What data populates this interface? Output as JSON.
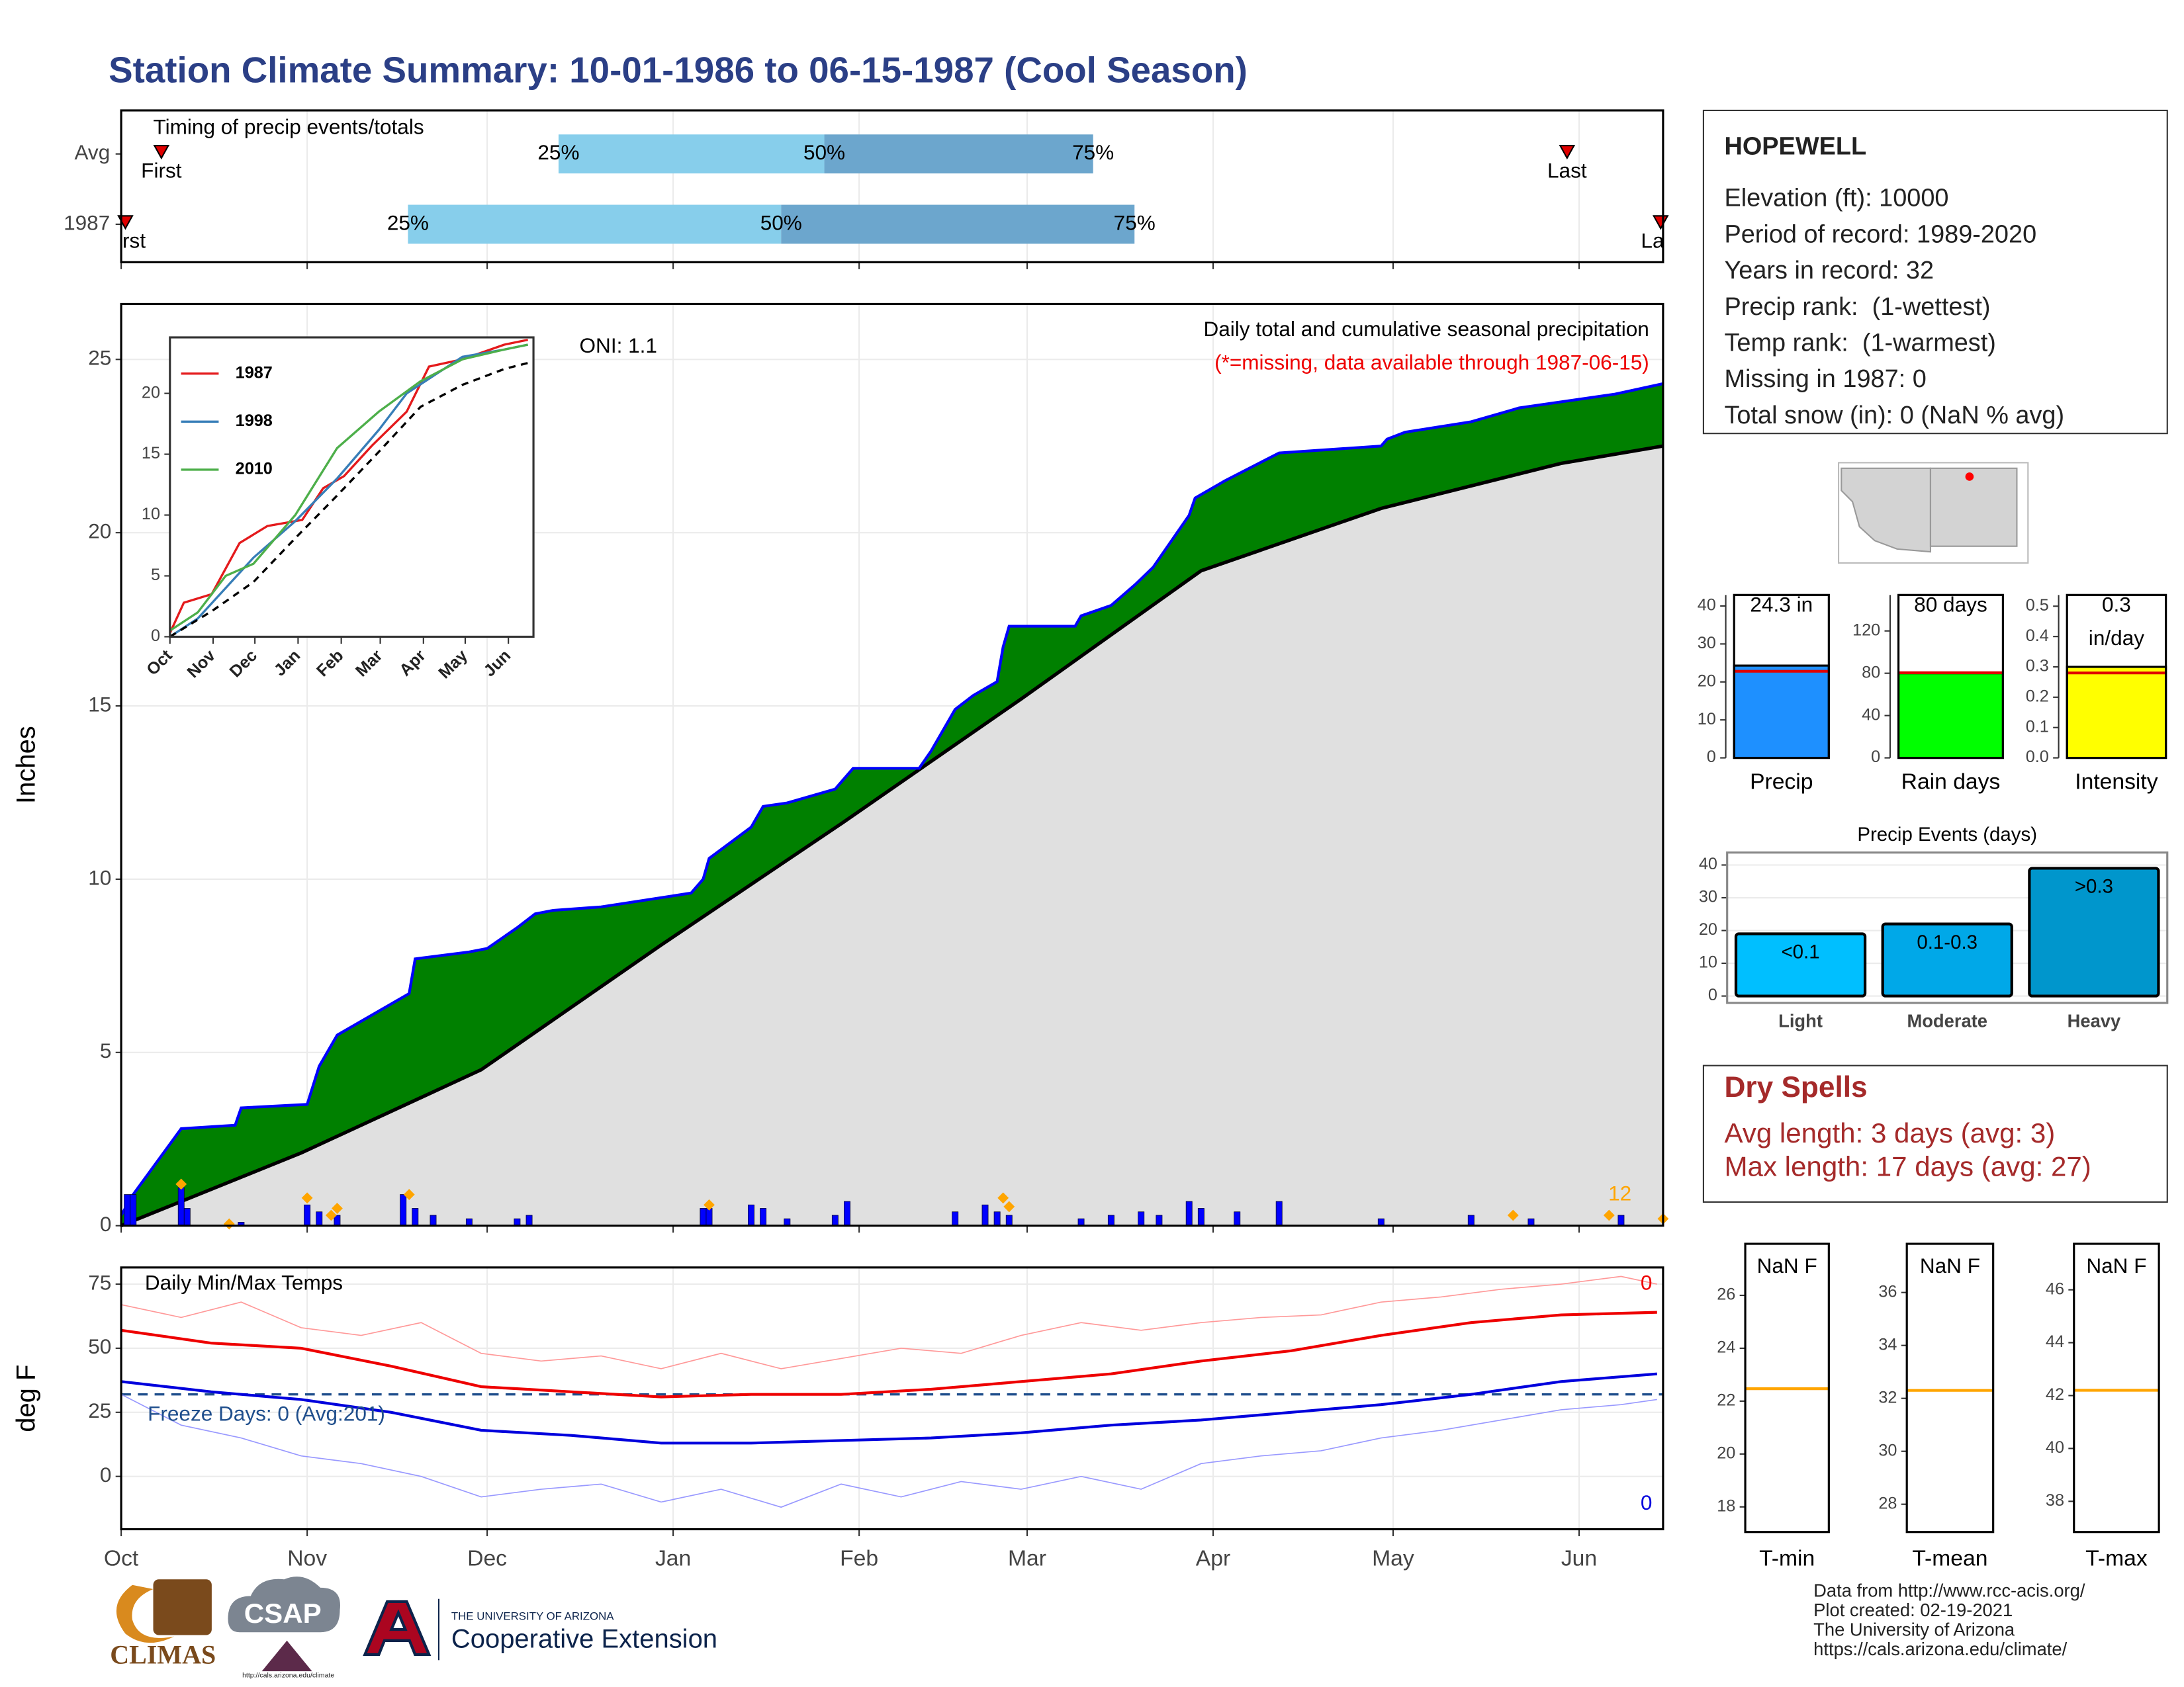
{
  "title": "Station Climate Summary: 10-01-1986 to 06-15-1987 (Cool Season)",
  "station": {
    "name": "HOPEWELL",
    "lines": [
      "Elevation (ft): 10000",
      "Period of record: 1989-2020",
      "Years in record: 32",
      "Precip rank:  (1-wettest)",
      "Temp rank:  (1-warmest)",
      "Missing in 1987: 0",
      "Total snow (in): 0 (NaN % avg)"
    ]
  },
  "dry_spells": {
    "title": "Dry Spells",
    "lines": [
      "Avg length: 3 days (avg: 3)",
      "Max length: 17 days (avg: 27)"
    ]
  },
  "credits": [
    "Data from http://www.rcc-acis.org/",
    "Plot created: 02-19-2021",
    "The University of Arizona",
    "https://cals.arizona.edu/climate/"
  ],
  "logos": [
    "CLIMAS",
    "CSAP",
    "http://cals.arizona.edu/climate",
    "THE UNIVERSITY OF ARIZONA",
    "Cooperative Extension"
  ],
  "chart_data": [
    {
      "type": "timeline",
      "title": "Timing of precip events/totals",
      "xlim": [
        0,
        257
      ],
      "xticks": [
        0,
        31,
        61,
        92,
        123,
        151,
        182,
        212,
        243
      ],
      "grid": true,
      "colors": [
        "#87CEEB",
        "#6CA6CD"
      ],
      "marker_color": "#e00000",
      "rows": [
        {
          "name": "Avg",
          "first": 6.7,
          "last": 241,
          "first_label": "First",
          "last_label": "Last",
          "quartiles": [
            72.9,
            117.2,
            162
          ],
          "quartile_names": [
            "25%",
            "50%",
            "75%"
          ]
        },
        {
          "name": "1987",
          "first": 0.7,
          "last": 256.6,
          "first_label": "First",
          "last_label": "Last",
          "quartiles": [
            47.8,
            110,
            168.9
          ],
          "quartile_names": [
            "25%",
            "50%",
            "75%"
          ]
        }
      ]
    },
    {
      "type": "area",
      "title": "Daily total and cumulative seasonal precipitation",
      "subtitle": "(*=missing, data available through 1987-06-15)",
      "oni": "ONI: 1.1",
      "ylabel": "Inches",
      "xlim": [
        0,
        257
      ],
      "xticks": [
        0,
        31,
        61,
        92,
        123,
        151,
        182,
        212,
        243
      ],
      "ylim": [
        0,
        26.6
      ],
      "yticks": [
        0,
        5,
        10,
        15,
        20,
        25
      ],
      "grid": true,
      "cumulative": {
        "color": "#0000ff",
        "fill": "#008000",
        "x": [
          0,
          2,
          10,
          19,
          20,
          31,
          33,
          36,
          48,
          49,
          58,
          61,
          66,
          69,
          72,
          80,
          95,
          97,
          98,
          105,
          107,
          111,
          119,
          122,
          133,
          135,
          139,
          142,
          146,
          147,
          148,
          159,
          160,
          165,
          169,
          172,
          178,
          179,
          184,
          193,
          210,
          211,
          214,
          225,
          233,
          249,
          257
        ],
        "values": [
          0.3,
          0.9,
          2.8,
          2.9,
          3.4,
          3.5,
          4.6,
          5.5,
          6.7,
          7.7,
          7.9,
          8.0,
          8.6,
          9.0,
          9.1,
          9.2,
          9.6,
          10.0,
          10.6,
          11.5,
          12.1,
          12.2,
          12.6,
          13.2,
          13.2,
          13.7,
          14.9,
          15.3,
          15.7,
          16.7,
          17.3,
          17.3,
          17.6,
          17.9,
          18.5,
          19.0,
          20.5,
          21.0,
          21.5,
          22.3,
          22.5,
          22.7,
          22.9,
          23.2,
          23.6,
          24.0,
          24.3
        ]
      },
      "average": {
        "color": "#000000",
        "fill": "#e0e0e0",
        "x": [
          0,
          30,
          60,
          90,
          120,
          150,
          180,
          210,
          240,
          257
        ],
        "values": [
          0,
          2.1,
          4.5,
          8.1,
          11.6,
          15.2,
          18.9,
          20.7,
          22.0,
          22.5
        ]
      },
      "daily": {
        "color": "#0000ff",
        "x": [
          1,
          2,
          10,
          11,
          20,
          31,
          33,
          36,
          47,
          49,
          52,
          58,
          66,
          68,
          97,
          98,
          105,
          107,
          111,
          119,
          121,
          139,
          144,
          146,
          148,
          160,
          165,
          170,
          173,
          178,
          180,
          186,
          193,
          210,
          225,
          235,
          250
        ],
        "values": [
          0.9,
          0.9,
          1.1,
          0.5,
          0.1,
          0.6,
          0.4,
          0.3,
          0.9,
          0.5,
          0.3,
          0.2,
          0.2,
          0.3,
          0.5,
          0.5,
          0.6,
          0.5,
          0.2,
          0.3,
          0.7,
          0.4,
          0.6,
          0.4,
          0.3,
          0.2,
          0.3,
          0.4,
          0.3,
          0.7,
          0.5,
          0.4,
          0.7,
          0.2,
          0.3,
          0.2,
          0.3
        ]
      },
      "flags": {
        "color": "#ffa500",
        "x": [
          10,
          18,
          31,
          35,
          36,
          48,
          98,
          147,
          148,
          232,
          248,
          257
        ],
        "values": [
          1.2,
          0.05,
          0.8,
          0.3,
          0.5,
          0.9,
          0.6,
          0.8,
          0.55,
          0.3,
          0.3,
          0.2
        ]
      },
      "flag_count": 12
    },
    {
      "type": "line",
      "xlim": [
        0,
        261
      ],
      "xticks": [
        {
          "value": 0,
          "label": "Oct"
        },
        {
          "value": 31,
          "label": "Nov"
        },
        {
          "value": 61,
          "label": "Dec"
        },
        {
          "value": 92,
          "label": "Jan"
        },
        {
          "value": 123,
          "label": "Feb"
        },
        {
          "value": 151,
          "label": "Mar"
        },
        {
          "value": 182,
          "label": "Apr"
        },
        {
          "value": 212,
          "label": "May"
        },
        {
          "value": 243,
          "label": "Jun"
        }
      ],
      "ylim": [
        0,
        24.6
      ],
      "yticks": [
        0,
        5,
        10,
        15,
        20
      ],
      "grid": false,
      "legend": "top-left",
      "series": [
        {
          "name": "1987",
          "color": "#e41a1c",
          "x": [
            0,
            10,
            30,
            50,
            70,
            95,
            110,
            125,
            145,
            170,
            186,
            210,
            240,
            257
          ],
          "values": [
            0.3,
            2.8,
            3.5,
            7.7,
            9.1,
            9.6,
            12.2,
            13.2,
            15.7,
            18.5,
            22.2,
            22.8,
            24.0,
            24.4
          ]
        },
        {
          "name": "1998",
          "color": "#377eb8",
          "x": [
            0,
            20,
            40,
            60,
            90,
            120,
            150,
            170,
            190,
            210,
            240,
            257
          ],
          "values": [
            0,
            1.5,
            4.0,
            6.5,
            9.5,
            13.0,
            17.0,
            20.0,
            21.5,
            23.0,
            23.6,
            24.0
          ]
        },
        {
          "name": "2010",
          "color": "#4daf4a",
          "x": [
            0,
            20,
            40,
            60,
            90,
            120,
            150,
            180,
            210,
            240,
            257
          ],
          "values": [
            0.5,
            2.0,
            5.0,
            6.0,
            10.0,
            15.5,
            18.5,
            21.0,
            22.8,
            23.6,
            24.0
          ]
        }
      ],
      "reference": {
        "color": "#000000",
        "x": [
          0,
          30,
          60,
          90,
          120,
          150,
          180,
          210,
          240,
          257
        ],
        "values": [
          0,
          2.1,
          4.5,
          8.1,
          11.6,
          15.2,
          18.9,
          20.7,
          22.0,
          22.5
        ]
      }
    },
    {
      "type": "line",
      "title": "Daily Min/Max Temps",
      "ylabel": "deg F",
      "xlim": [
        0,
        257
      ],
      "xticks": [
        {
          "value": 0,
          "label": "Oct"
        },
        {
          "value": 31,
          "label": "Nov"
        },
        {
          "value": 61,
          "label": "Dec"
        },
        {
          "value": 92,
          "label": "Jan"
        },
        {
          "value": 123,
          "label": "Feb"
        },
        {
          "value": 151,
          "label": "Mar"
        },
        {
          "value": 182,
          "label": "Apr"
        },
        {
          "value": 212,
          "label": "May"
        },
        {
          "value": 243,
          "label": "Jun"
        }
      ],
      "ylim": [
        -20.6,
        81.5
      ],
      "yticks": [
        0,
        25,
        50,
        75
      ],
      "grid": true,
      "series": [
        {
          "color": "#ff9999",
          "width": 0.8,
          "x": [
            0,
            10,
            20,
            30,
            40,
            50,
            60,
            70,
            80,
            90,
            100,
            110,
            120,
            130,
            140,
            150,
            160,
            170,
            180,
            190,
            200,
            210,
            220,
            230,
            240,
            250,
            256
          ],
          "values": [
            67,
            62,
            68,
            58,
            55,
            60,
            48,
            45,
            47,
            42,
            48,
            42,
            46,
            50,
            48,
            55,
            60,
            57,
            60,
            62,
            63,
            68,
            70,
            73,
            75,
            78,
            75
          ]
        },
        {
          "color": "#9999ff",
          "width": 0.8,
          "x": [
            0,
            10,
            20,
            30,
            40,
            50,
            60,
            70,
            80,
            90,
            100,
            110,
            120,
            130,
            140,
            150,
            160,
            170,
            180,
            190,
            200,
            210,
            220,
            230,
            240,
            250,
            256
          ],
          "values": [
            32,
            20,
            15,
            8,
            5,
            0,
            -8,
            -5,
            -3,
            -10,
            -5,
            -12,
            -3,
            -8,
            -2,
            -5,
            0,
            -5,
            5,
            8,
            10,
            15,
            18,
            22,
            26,
            28,
            30
          ]
        },
        {
          "color": "#ee0000",
          "width": 2,
          "x": [
            0,
            15,
            30,
            45,
            60,
            75,
            90,
            105,
            120,
            135,
            150,
            165,
            180,
            195,
            210,
            225,
            240,
            256
          ],
          "values": [
            57,
            52,
            50,
            43,
            35,
            33,
            31,
            32,
            32,
            34,
            37,
            40,
            45,
            49,
            55,
            60,
            63,
            64
          ]
        },
        {
          "color": "#0000dd",
          "width": 2,
          "x": [
            0,
            15,
            30,
            45,
            60,
            75,
            90,
            105,
            120,
            135,
            150,
            165,
            180,
            195,
            210,
            225,
            240,
            256
          ],
          "values": [
            37,
            33,
            30,
            25,
            18,
            16,
            13,
            13,
            14,
            15,
            17,
            20,
            22,
            25,
            28,
            32,
            37,
            40
          ]
        }
      ],
      "freeze": {
        "value": 32,
        "label": "Freeze Days: 0 (Avg:201)",
        "color": "#1f4e8c"
      },
      "hot_days": 0,
      "cold_days": 0
    },
    {
      "type": "bar",
      "categories": [
        "Precip"
      ],
      "values": [
        24.3
      ],
      "value_labels": [
        "24.3 in"
      ],
      "color": "#1e90ff",
      "reference": 22.8,
      "reference_color": "#e00000",
      "ylim": [
        0,
        42.9
      ],
      "yticks": [
        0,
        10,
        20,
        30,
        40
      ]
    },
    {
      "type": "bar",
      "categories": [
        "Rain days"
      ],
      "values": [
        80
      ],
      "value_labels": [
        "80 days"
      ],
      "color": "#00ff00",
      "reference": 80.5,
      "reference_color": "#e00000",
      "ylim": [
        0,
        154
      ],
      "yticks": [
        0,
        40,
        80,
        120
      ]
    },
    {
      "type": "bar",
      "categories": [
        "Intensity"
      ],
      "values": [
        0.3
      ],
      "value_labels": [
        "0.3 in/day"
      ],
      "color": "#ffff00",
      "reference": 0.28,
      "reference_color": "#e00000",
      "ylim": [
        0,
        0.537
      ],
      "yticks": [
        {
          "value": 0,
          "label": "0.0"
        },
        0.1,
        0.2,
        0.3,
        0.4,
        0.5
      ]
    },
    {
      "type": "bar",
      "title": "Precip Events (days)",
      "categories": [
        "Light",
        "Moderate",
        "Heavy"
      ],
      "ranges": [
        "<0.1",
        "0.1-0.3",
        ">0.3"
      ],
      "values": [
        19,
        22,
        39
      ],
      "colors": [
        "#00bfff",
        "#00a8e8",
        "#0096cc"
      ],
      "ylim": [
        -2.1,
        43.8
      ],
      "yticks": [
        0,
        10,
        20,
        30,
        40
      ],
      "grid": true
    },
    {
      "type": "reference",
      "categories": [
        "T-min"
      ],
      "value_label": "NaN F",
      "reference": 22.47,
      "color": "#ffa500",
      "ylim": [
        17.05,
        27.95
      ],
      "yticks": [
        18,
        20,
        22,
        24,
        26
      ]
    },
    {
      "type": "reference",
      "categories": [
        "T-mean"
      ],
      "value_label": "NaN F",
      "reference": 32.3,
      "color": "#ffa500",
      "ylim": [
        26.95,
        37.84
      ],
      "yticks": [
        28,
        30,
        32,
        34,
        36
      ]
    },
    {
      "type": "reference",
      "categories": [
        "T-max"
      ],
      "value_label": "NaN F",
      "reference": 42.2,
      "color": "#ffa500",
      "ylim": [
        36.84,
        47.74
      ],
      "yticks": [
        38,
        40,
        42,
        44,
        46
      ]
    }
  ]
}
